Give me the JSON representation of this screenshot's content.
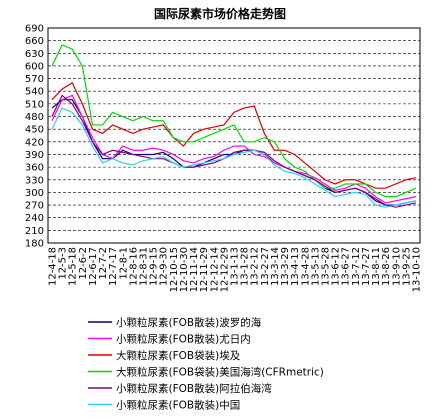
{
  "chart_data": {
    "type": "line",
    "title": "国际尿素市场价格走势图",
    "categories": [
      "12-4-18",
      "12-5-3",
      "12-5-18",
      "12-6-2",
      "12-6-17",
      "12-7-2",
      "12-7-17",
      "12-8-1",
      "12-8-16",
      "12-8-31",
      "12-9-15",
      "12-9-30",
      "12-10-15",
      "12-10-30",
      "12-11-14",
      "12-11-29",
      "12-12-14",
      "12-12-29",
      "13-1-13",
      "13-1-28",
      "13-2-12",
      "13-2-27",
      "13-3-14",
      "13-3-29",
      "13-4-13",
      "13-4-28",
      "13-5-13",
      "13-5-28",
      "13-6-12",
      "13-6-27",
      "13-7-12",
      "13-7-27",
      "13-8-11",
      "13-8-26",
      "13-9-10",
      "13-9-25",
      "13-10-10"
    ],
    "series": [
      {
        "name": "小颗粒尿素(FOB散装)波罗的海",
        "color": "#000080",
        "values": [
          500,
          520,
          520,
          480,
          420,
          380,
          380,
          400,
          390,
          390,
          390,
          395,
          380,
          360,
          360,
          370,
          380,
          390,
          390,
          400,
          400,
          390,
          370,
          360,
          350,
          340,
          330,
          310,
          300,
          305,
          310,
          300,
          280,
          270,
          270,
          275,
          280
        ]
      },
      {
        "name": "小颗粒尿素(FOB散装)尤日内",
        "color": "#ff00ff",
        "values": [
          470,
          520,
          530,
          480,
          430,
          390,
          380,
          410,
          400,
          400,
          405,
          400,
          390,
          375,
          370,
          380,
          385,
          400,
          410,
          410,
          390,
          385,
          370,
          360,
          350,
          345,
          335,
          320,
          305,
          310,
          320,
          310,
          290,
          275,
          280,
          285,
          290
        ]
      },
      {
        "name": "大颗粒尿素(FOB袋装)埃及",
        "color": "#dd0000",
        "values": [
          520,
          545,
          560,
          510,
          450,
          440,
          460,
          450,
          440,
          450,
          455,
          460,
          430,
          410,
          440,
          450,
          455,
          460,
          490,
          500,
          505,
          440,
          400,
          400,
          390,
          370,
          350,
          330,
          320,
          330,
          330,
          320,
          310,
          310,
          320,
          330,
          335
        ]
      },
      {
        "name": "大颗粒尿素(FOB袋装)美国海湾(CFRmetric)",
        "color": "#00dd00",
        "values": [
          600,
          650,
          640,
          600,
          460,
          460,
          490,
          480,
          470,
          480,
          470,
          470,
          430,
          420,
          420,
          430,
          440,
          450,
          460,
          420,
          420,
          430,
          420,
          380,
          360,
          350,
          330,
          310,
          310,
          320,
          320,
          320,
          300,
          290,
          290,
          300,
          310
        ]
      },
      {
        "name": "小颗粒尿素(FOB散装)阿拉伯海湾",
        "color": "#800080",
        "values": [
          480,
          530,
          510,
          470,
          420,
          390,
          400,
          395,
          390,
          385,
          380,
          380,
          370,
          360,
          360,
          365,
          370,
          380,
          395,
          400,
          400,
          395,
          375,
          360,
          350,
          340,
          330,
          315,
          300,
          305,
          310,
          300,
          285,
          270,
          265,
          270,
          275
        ]
      },
      {
        "name": "小颗粒尿素(FOB散装)中国",
        "color": "#33ccff",
        "values": [
          450,
          500,
          490,
          460,
          410,
          370,
          380,
          370,
          365,
          375,
          380,
          385,
          370,
          360,
          365,
          370,
          375,
          380,
          390,
          395,
          400,
          390,
          365,
          350,
          345,
          335,
          320,
          305,
          290,
          295,
          300,
          295,
          270,
          265,
          270,
          275,
          280
        ]
      }
    ],
    "ylim": [
      180,
      690
    ],
    "yticks": [
      180,
      210,
      240,
      270,
      300,
      330,
      360,
      390,
      420,
      450,
      480,
      510,
      540,
      570,
      600,
      630,
      660,
      690
    ],
    "grid": true
  }
}
